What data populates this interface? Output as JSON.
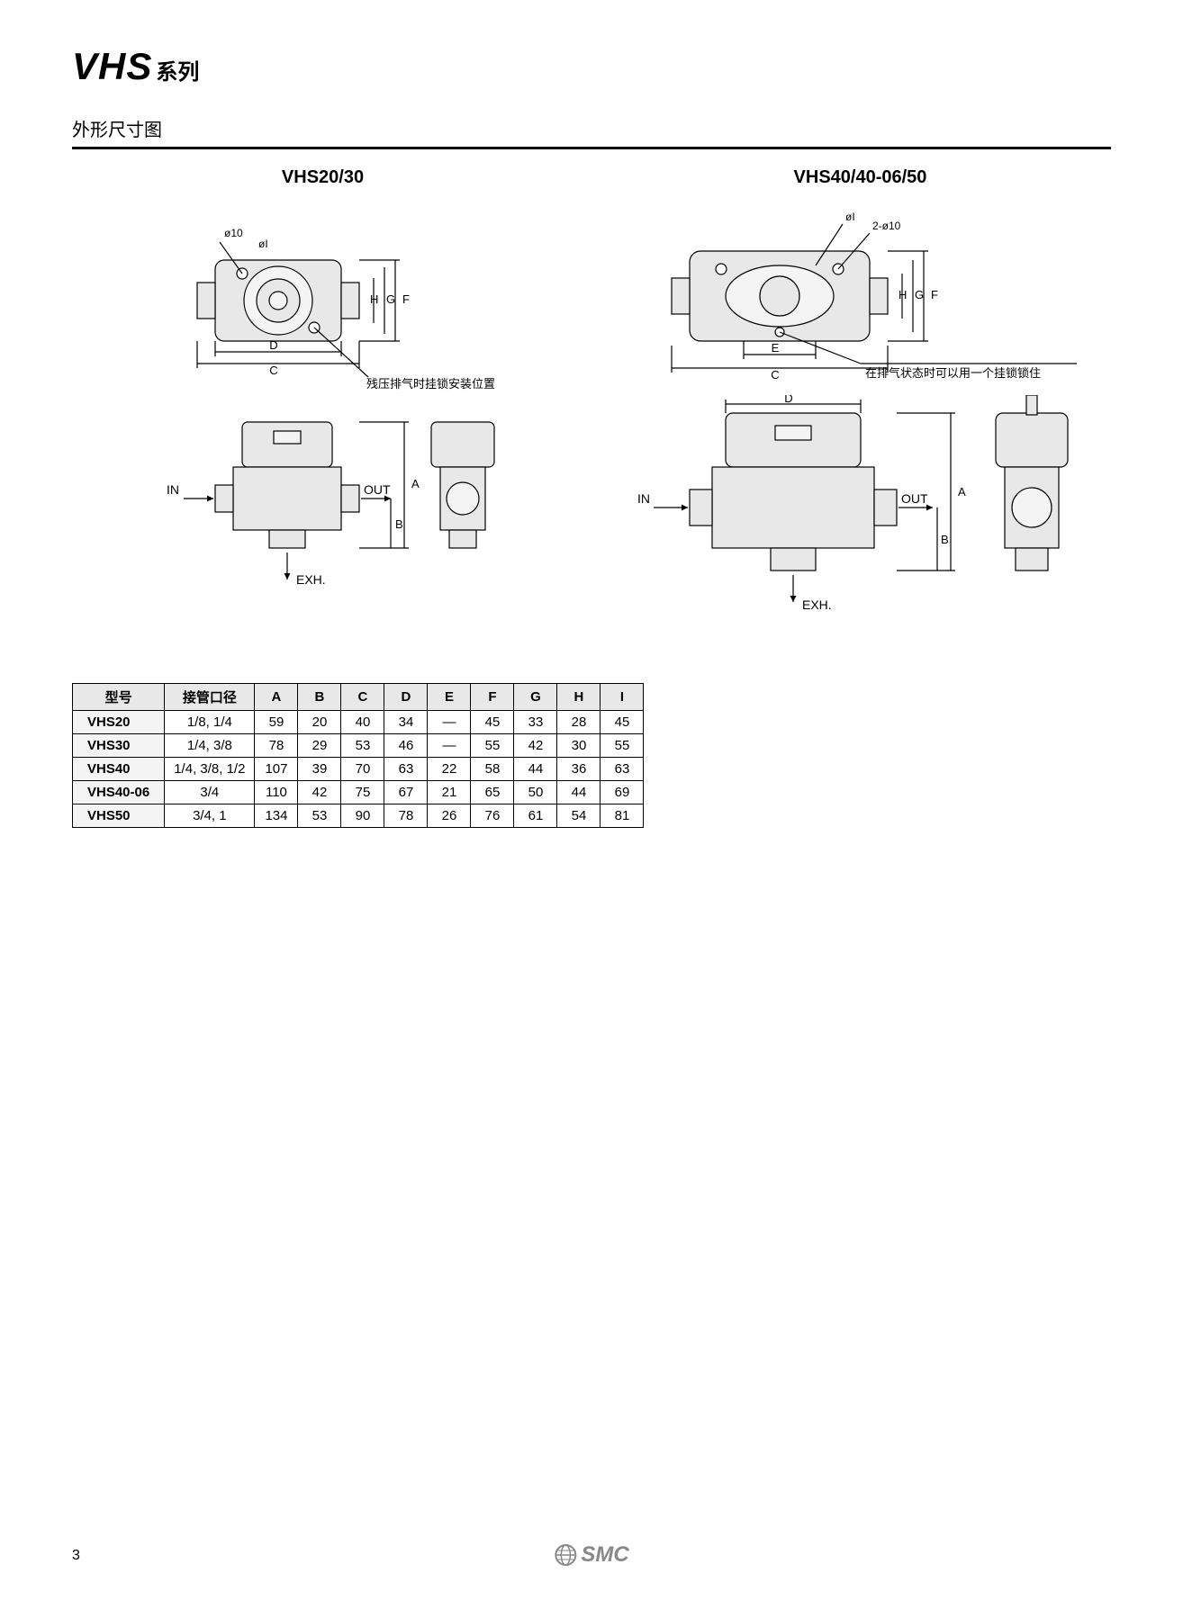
{
  "header": {
    "series_main": "VHS",
    "series_sub": "系列"
  },
  "section_title": "外形尺寸图",
  "figures": {
    "left": {
      "heading": "VHS20/30",
      "labels": {
        "in": "IN",
        "out": "OUT",
        "exh": "EXH.",
        "detail_dia": "ø10",
        "detail_dia2": "øI",
        "note": "残压排气时挂锁安装位置",
        "dim_a": "A",
        "dim_b": "B",
        "dim_c": "C",
        "dim_d": "D",
        "dim_f": "F",
        "dim_g": "G",
        "dim_h": "H"
      }
    },
    "right": {
      "heading": "VHS40/40-06/50",
      "labels": {
        "in": "IN",
        "out": "OUT",
        "exh": "EXH.",
        "detail_dia": "øI",
        "detail_dia2": "2-ø10",
        "note": "在排气状态时可以用一个挂锁锁住",
        "dim_a": "A",
        "dim_b": "B",
        "dim_c": "C",
        "dim_d": "D",
        "dim_e": "E",
        "dim_f": "F",
        "dim_g": "G",
        "dim_h": "H"
      }
    }
  },
  "table": {
    "columns": [
      "型号",
      "接管口径",
      "A",
      "B",
      "C",
      "D",
      "E",
      "F",
      "G",
      "H",
      "I"
    ],
    "rows": [
      [
        "VHS20",
        "1/8, 1/4",
        "59",
        "20",
        "40",
        "34",
        "—",
        "45",
        "33",
        "28",
        "45"
      ],
      [
        "VHS30",
        "1/4, 3/8",
        "78",
        "29",
        "53",
        "46",
        "—",
        "55",
        "42",
        "30",
        "55"
      ],
      [
        "VHS40",
        "1/4, 3/8, 1/2",
        "107",
        "39",
        "70",
        "63",
        "22",
        "58",
        "44",
        "36",
        "63"
      ],
      [
        "VHS40-06",
        "3/4",
        "110",
        "42",
        "75",
        "67",
        "21",
        "65",
        "50",
        "44",
        "69"
      ],
      [
        "VHS50",
        "3/4, 1",
        "134",
        "53",
        "90",
        "78",
        "26",
        "76",
        "61",
        "54",
        "81"
      ]
    ]
  },
  "page_number": "3",
  "footer_brand": "SMC",
  "colors": {
    "text": "#000000",
    "drawing_stroke": "#000000",
    "drawing_fill": "#e8e8e8",
    "drawing_fill_light": "#f4f4f4",
    "table_header_bg": "#e8e8e8",
    "logo_color": "#888888"
  }
}
